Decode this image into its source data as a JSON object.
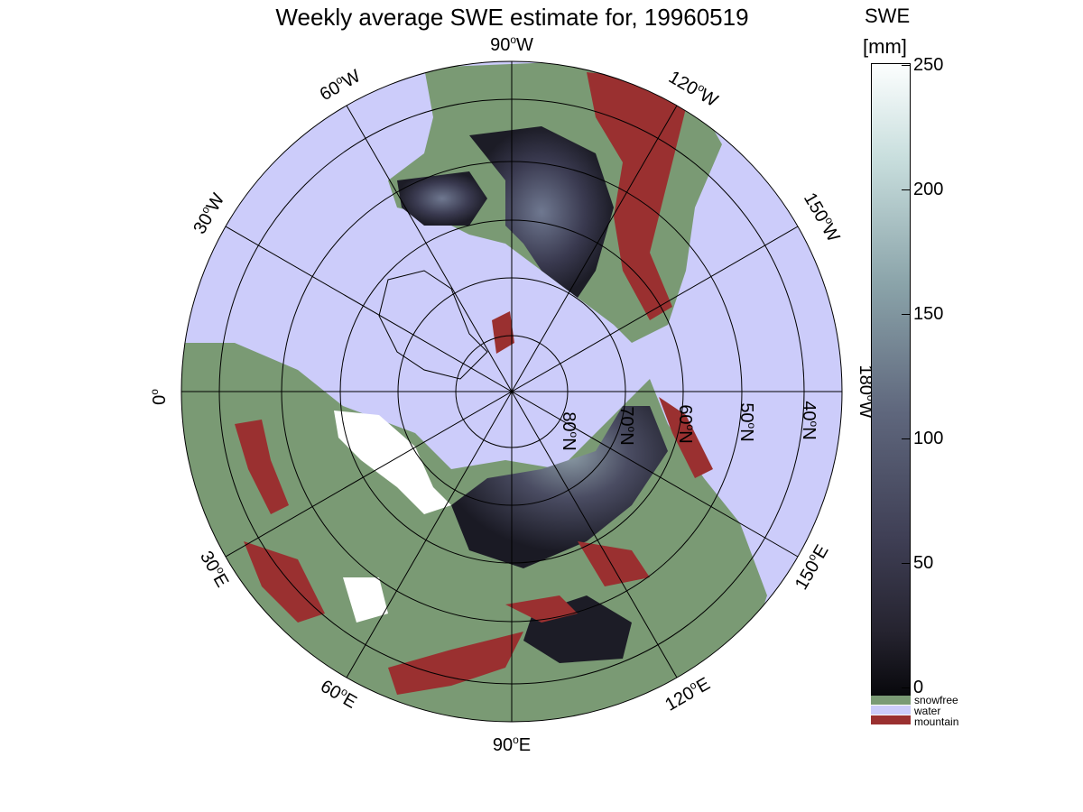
{
  "title": "Weekly average SWE estimate for, 19960519",
  "colorbar": {
    "title": "SWE",
    "unit": "[mm]",
    "ticks": [
      "0",
      "50",
      "100",
      "150",
      "200",
      "250"
    ],
    "range": [
      0,
      250
    ]
  },
  "legend": [
    {
      "label": "snowfree",
      "color": "#7a9a74"
    },
    {
      "label": "water",
      "color": "#ccccfa"
    },
    {
      "label": "mountain",
      "color": "#9a3030"
    }
  ],
  "map": {
    "projection": "north-polar-stereographic",
    "water_color": "#ccccfa",
    "land_color": "#7a9a74",
    "mountain_color": "#9a3030",
    "snow_dark_color": "#1a1a24",
    "longitude_labels": [
      {
        "deg": "90",
        "hemi": "W"
      },
      {
        "deg": "120",
        "hemi": "W"
      },
      {
        "deg": "150",
        "hemi": "W"
      },
      {
        "deg": "180",
        "hemi": "W"
      },
      {
        "deg": "150",
        "hemi": "E"
      },
      {
        "deg": "120",
        "hemi": "E"
      },
      {
        "deg": "90",
        "hemi": "E"
      },
      {
        "deg": "60",
        "hemi": "E"
      },
      {
        "deg": "30",
        "hemi": "E"
      },
      {
        "deg": "0",
        "hemi": ""
      },
      {
        "deg": "30",
        "hemi": "W"
      },
      {
        "deg": "60",
        "hemi": "W"
      }
    ],
    "latitude_labels": [
      {
        "deg": "80",
        "hemi": "N"
      },
      {
        "deg": "70",
        "hemi": "N"
      },
      {
        "deg": "60",
        "hemi": "N"
      },
      {
        "deg": "50",
        "hemi": "N"
      },
      {
        "deg": "40",
        "hemi": "N"
      }
    ]
  }
}
